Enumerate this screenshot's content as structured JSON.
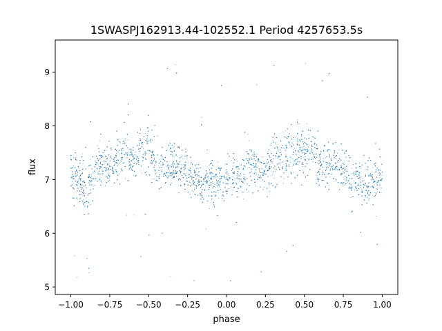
{
  "chart_data": {
    "type": "scatter",
    "title": "1SWASPJ162913.44-102552.1 Period 4257653.5s",
    "xlabel": "phase",
    "ylabel": "flux",
    "xlim": [
      -1.1,
      1.1
    ],
    "ylim": [
      4.86,
      9.6
    ],
    "grid": false,
    "x_ticks": [
      -1.0,
      -0.75,
      -0.5,
      -0.25,
      0.0,
      0.25,
      0.5,
      0.75,
      1.0
    ],
    "x_tick_labels": [
      "−1.00",
      "−0.75",
      "−0.50",
      "−0.25",
      "0.00",
      "0.25",
      "0.50",
      "0.75",
      "1.00"
    ],
    "y_ticks": [
      5,
      6,
      7,
      8,
      9
    ],
    "y_tick_labels": [
      "5",
      "6",
      "7",
      "8",
      "9"
    ],
    "marker_color": "#1f77b4",
    "series": [
      {
        "x": [
          -1.0,
          -0.95,
          -0.9,
          -0.85,
          -0.8,
          -0.75,
          -0.7,
          -0.65,
          -0.6,
          -0.55,
          -0.5,
          -0.45,
          -0.4,
          -0.35,
          -0.3,
          -0.25,
          -0.2,
          -0.15,
          -0.1,
          -0.05,
          0.0,
          0.05,
          0.1,
          0.15,
          0.2,
          0.25,
          0.3,
          0.35,
          0.4,
          0.45,
          0.5,
          0.55,
          0.6,
          0.65,
          0.7,
          0.75,
          0.8,
          0.85,
          0.9,
          0.95,
          1.0
        ],
        "y_center": [
          7.1,
          7.0,
          6.8,
          7.2,
          7.3,
          7.2,
          7.4,
          7.5,
          7.4,
          7.6,
          7.6,
          7.3,
          7.2,
          7.3,
          7.2,
          7.2,
          7.0,
          6.9,
          7.0,
          6.9,
          7.0,
          7.1,
          7.0,
          7.3,
          7.2,
          7.2,
          7.4,
          7.4,
          7.5,
          7.6,
          7.5,
          7.6,
          7.3,
          7.3,
          7.2,
          7.2,
          7.0,
          7.0,
          6.9,
          7.0,
          7.1
        ],
        "y_spread": [
          0.5,
          0.6,
          0.6,
          0.5,
          0.5,
          0.5,
          0.6,
          0.6,
          0.5,
          0.6,
          0.6,
          0.5,
          0.5,
          0.6,
          0.5,
          0.5,
          0.5,
          0.5,
          0.5,
          0.5,
          0.5,
          0.5,
          0.5,
          0.6,
          0.5,
          0.5,
          0.6,
          0.6,
          0.6,
          0.6,
          0.6,
          0.6,
          0.5,
          0.6,
          0.5,
          0.5,
          0.5,
          0.5,
          0.6,
          0.6,
          0.5
        ],
        "point_count": 9000
      }
    ]
  }
}
